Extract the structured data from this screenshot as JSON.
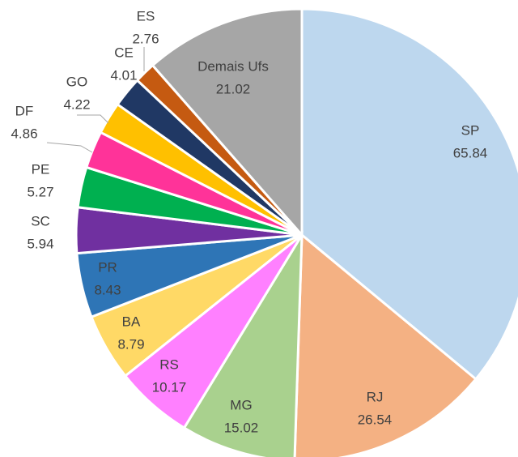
{
  "chart_data": {
    "type": "pie",
    "categories": [
      "SP",
      "RJ",
      "MG",
      "RS",
      "BA",
      "PR",
      "SC",
      "PE",
      "DF",
      "GO",
      "CE",
      "ES",
      "Demais Ufs"
    ],
    "values": [
      65.84,
      26.54,
      15.02,
      10.17,
      8.79,
      8.43,
      5.94,
      5.27,
      4.86,
      4.22,
      4.01,
      2.76,
      21.02
    ],
    "colors": [
      "#bdd7ee",
      "#f4b183",
      "#a9d18e",
      "#ff80ff",
      "#ffd966",
      "#2e75b6",
      "#7030a0",
      "#00b050",
      "#ff3399",
      "#ffc000",
      "#203864",
      "#c55a11",
      "#a6a6a6"
    ]
  }
}
